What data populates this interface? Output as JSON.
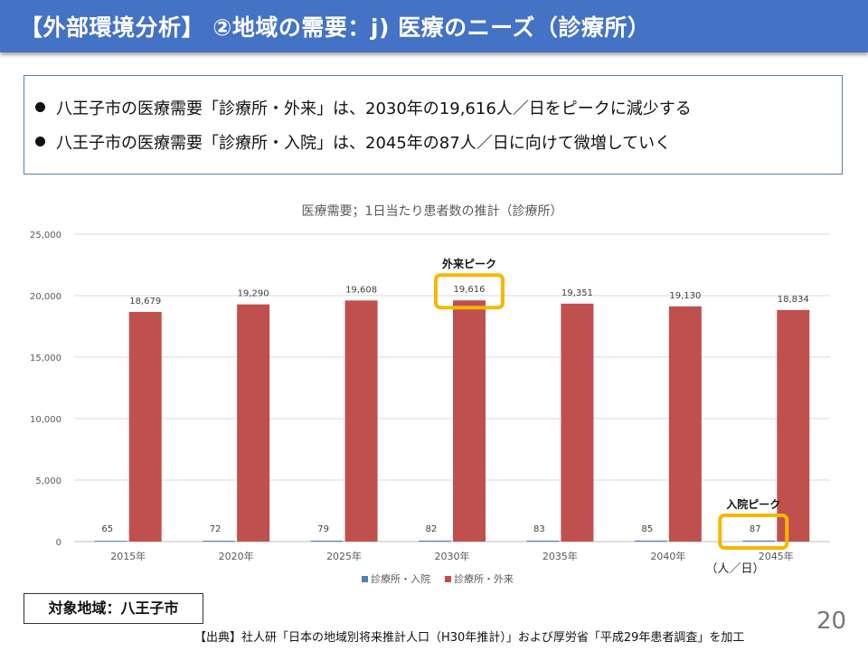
{
  "slide": {
    "title": "【外部環境分析】 ②地域の需要：j) 医療のニーズ（診療所）",
    "summary": [
      "八王子市の医療需要「診療所・外来」は、2030年の19,616人／日をピークに減少する",
      "八王子市の医療需要「診療所・入院」は、2045年の87人／日に向けて微増していく"
    ],
    "region_label": "対象地域：八王子市",
    "source": "【出典】社人研「日本の地域別将来推計人口（H30年推計）」および厚労省「平成29年患者調査」を加工",
    "page_number": "20"
  },
  "chart_data": {
    "type": "bar",
    "title": "医療需要；1日当たり患者数の推計（診療所）",
    "categories": [
      "2015年",
      "2020年",
      "2025年",
      "2030年",
      "2035年",
      "2040年",
      "2045年"
    ],
    "series": [
      {
        "name": "診療所・入院",
        "color": "#4f81bd",
        "values": [
          65,
          72,
          79,
          82,
          83,
          85,
          87
        ]
      },
      {
        "name": "診療所・外来",
        "color": "#c0504d",
        "values": [
          18679,
          19290,
          19608,
          19616,
          19351,
          19130,
          18834
        ]
      }
    ],
    "data_labels": {
      "inpatient": [
        "65",
        "72",
        "79",
        "82",
        "83",
        "85",
        "87"
      ],
      "outpatient": [
        "18,679",
        "19,290",
        "19,608",
        "19,616",
        "19,351",
        "19,130",
        "18,834"
      ]
    },
    "ylim": [
      0,
      25000
    ],
    "yticks": [
      0,
      5000,
      10000,
      15000,
      20000,
      25000
    ],
    "ytick_labels": [
      "0",
      "5,000",
      "10,000",
      "15,000",
      "20,000",
      "25,000"
    ],
    "grid": true,
    "legend_position": "bottom",
    "unit_label": "（人／日）",
    "annotations": [
      {
        "text": "外来ピーク",
        "category": "2030年",
        "series": "診療所・外来",
        "color": "#f5b800"
      },
      {
        "text": "入院ピーク",
        "category": "2045年",
        "series": "診療所・入院",
        "color": "#f5b800"
      }
    ]
  }
}
